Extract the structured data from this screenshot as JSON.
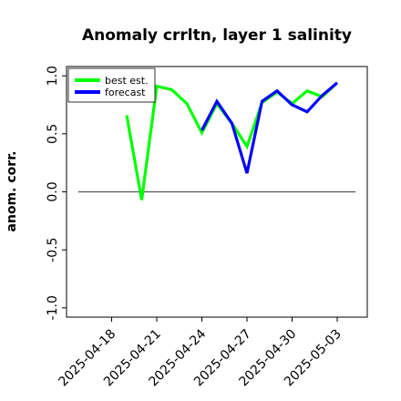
{
  "chart_data": {
    "type": "line",
    "title": "Anomaly crrltn, layer 1 salinity",
    "ylabel": "anom. corr.",
    "xlabel": "",
    "x": [
      "2025-04-20",
      "2025-04-21",
      "2025-04-22",
      "2025-04-23",
      "2025-04-24",
      "2025-04-25",
      "2025-04-26",
      "2025-04-27",
      "2025-04-28",
      "2025-04-29",
      "2025-04-30",
      "2025-05-01",
      "2025-05-02",
      "2025-05-03"
    ],
    "x_range": [
      "2025-04-15",
      "2025-05-05"
    ],
    "ylim": [
      -1.08,
      1.08
    ],
    "yticks": [
      1.0,
      0.5,
      0.0,
      -0.5,
      -1.0
    ],
    "ytick_labels": [
      "1.0",
      "0.5",
      "0.0",
      "-0.5",
      "-1.0"
    ],
    "xticks": [
      "2025-04-18",
      "2025-04-21",
      "2025-04-24",
      "2025-04-27",
      "2025-04-30",
      "2025-05-03"
    ],
    "xtick_labels": [
      "2025-04-18",
      "2025-04-21",
      "2025-04-24",
      "2025-04-27",
      "2025-04-30",
      "2025-05-03"
    ],
    "highlight_tick": "2025-04-24",
    "highlight_color": "#228b22",
    "reference_line_y": 0,
    "legend_position": "top-left",
    "series": [
      {
        "name": "best est.",
        "color": "#00ff00",
        "points": [
          {
            "x": "2025-04-19",
            "y": 0.66
          },
          {
            "x": "2025-04-20",
            "y": -0.07
          },
          {
            "x": "2025-04-21",
            "y": 0.91
          },
          {
            "x": "2025-04-22",
            "y": 0.88
          },
          {
            "x": "2025-04-23",
            "y": 0.76
          },
          {
            "x": "2025-04-24",
            "y": 0.51
          },
          {
            "x": "2025-04-25",
            "y": 0.76
          },
          {
            "x": "2025-04-26",
            "y": 0.59
          },
          {
            "x": "2025-04-27",
            "y": 0.39
          },
          {
            "x": "2025-04-28",
            "y": 0.77
          },
          {
            "x": "2025-04-29",
            "y": 0.86
          },
          {
            "x": "2025-04-30",
            "y": 0.76
          },
          {
            "x": "2025-05-01",
            "y": 0.87
          },
          {
            "x": "2025-05-02",
            "y": 0.82
          },
          {
            "x": "2025-05-03",
            "y": 0.94
          }
        ]
      },
      {
        "name": "forecast",
        "color": "#0000ff",
        "points": [
          {
            "x": "2025-04-24",
            "y": 0.53
          },
          {
            "x": "2025-04-25",
            "y": 0.78
          },
          {
            "x": "2025-04-26",
            "y": 0.59
          },
          {
            "x": "2025-04-27",
            "y": 0.16
          },
          {
            "x": "2025-04-28",
            "y": 0.78
          },
          {
            "x": "2025-04-29",
            "y": 0.87
          },
          {
            "x": "2025-04-30",
            "y": 0.75
          },
          {
            "x": "2025-05-01",
            "y": 0.69
          },
          {
            "x": "2025-05-02",
            "y": 0.83
          },
          {
            "x": "2025-05-03",
            "y": 0.94
          }
        ]
      }
    ]
  }
}
